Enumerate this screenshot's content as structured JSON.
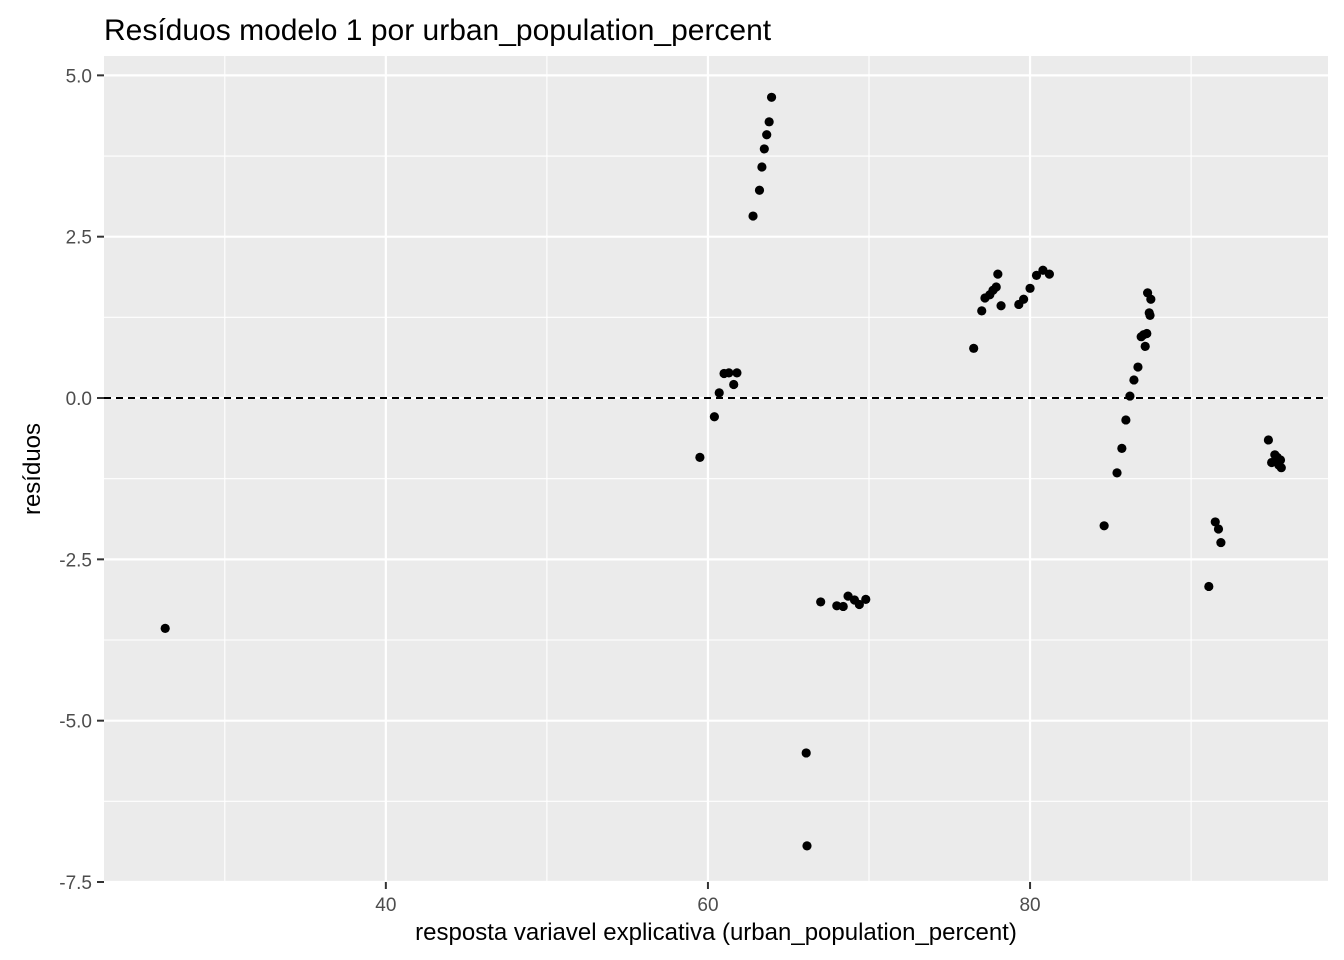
{
  "chart_data": {
    "type": "scatter",
    "title": "Resíduos modelo 1 por urban_population_percent",
    "xlabel": "resposta variavel explicativa (urban_population_percent)",
    "ylabel": "resíduos",
    "xlim": [
      22.5,
      98.5
    ],
    "ylim": [
      -7.5,
      5.3
    ],
    "x_ticks": [
      40,
      60,
      80
    ],
    "x_tick_labels": [
      "40",
      "60",
      "80"
    ],
    "x_minor_ticks": [
      30,
      50,
      70,
      90
    ],
    "y_ticks": [
      -7.5,
      -5.0,
      -2.5,
      0.0,
      2.5,
      5.0
    ],
    "y_tick_labels": [
      "-7.5",
      "-5.0",
      "-2.5",
      "0.0",
      "2.5",
      "5.0"
    ],
    "y_minor_ticks": [
      -6.25,
      -3.75,
      -1.25,
      1.25,
      3.75
    ],
    "grid": true,
    "reference_line": {
      "y": 0,
      "style": "dashed"
    },
    "colors": {
      "panel": "#ebebeb",
      "grid": "#ffffff",
      "point": "#000000",
      "tick_text": "#4d4d4d",
      "tick_mark": "#333333"
    },
    "points": [
      {
        "x": 26.3,
        "y": -3.57
      },
      {
        "x": 59.5,
        "y": -0.92
      },
      {
        "x": 60.4,
        "y": -0.29
      },
      {
        "x": 60.7,
        "y": 0.08
      },
      {
        "x": 61.0,
        "y": 0.38
      },
      {
        "x": 61.3,
        "y": 0.39
      },
      {
        "x": 61.6,
        "y": 0.21
      },
      {
        "x": 61.8,
        "y": 0.39
      },
      {
        "x": 62.8,
        "y": 2.82
      },
      {
        "x": 63.2,
        "y": 3.22
      },
      {
        "x": 63.35,
        "y": 3.58
      },
      {
        "x": 63.5,
        "y": 3.86
      },
      {
        "x": 63.65,
        "y": 4.08
      },
      {
        "x": 63.8,
        "y": 4.28
      },
      {
        "x": 63.95,
        "y": 4.66
      },
      {
        "x": 66.1,
        "y": -5.5
      },
      {
        "x": 66.15,
        "y": -6.94
      },
      {
        "x": 67.0,
        "y": -3.16
      },
      {
        "x": 68.0,
        "y": -3.22
      },
      {
        "x": 68.4,
        "y": -3.23
      },
      {
        "x": 68.7,
        "y": -3.07
      },
      {
        "x": 69.1,
        "y": -3.13
      },
      {
        "x": 69.4,
        "y": -3.2
      },
      {
        "x": 69.8,
        "y": -3.12
      },
      {
        "x": 76.5,
        "y": 0.77
      },
      {
        "x": 77.0,
        "y": 1.35
      },
      {
        "x": 77.2,
        "y": 1.55
      },
      {
        "x": 77.5,
        "y": 1.6
      },
      {
        "x": 77.7,
        "y": 1.67
      },
      {
        "x": 77.9,
        "y": 1.72
      },
      {
        "x": 78.0,
        "y": 1.92
      },
      {
        "x": 78.2,
        "y": 1.43
      },
      {
        "x": 79.3,
        "y": 1.45
      },
      {
        "x": 79.6,
        "y": 1.53
      },
      {
        "x": 80.0,
        "y": 1.7
      },
      {
        "x": 80.4,
        "y": 1.9
      },
      {
        "x": 80.8,
        "y": 1.98
      },
      {
        "x": 81.2,
        "y": 1.92
      },
      {
        "x": 84.6,
        "y": -1.98
      },
      {
        "x": 85.4,
        "y": -1.16
      },
      {
        "x": 85.7,
        "y": -0.78
      },
      {
        "x": 85.95,
        "y": -0.34
      },
      {
        "x": 86.2,
        "y": 0.03
      },
      {
        "x": 86.45,
        "y": 0.28
      },
      {
        "x": 86.7,
        "y": 0.48
      },
      {
        "x": 86.9,
        "y": 0.95
      },
      {
        "x": 87.05,
        "y": 0.98
      },
      {
        "x": 87.15,
        "y": 0.8
      },
      {
        "x": 87.25,
        "y": 1.0
      },
      {
        "x": 87.3,
        "y": 1.63
      },
      {
        "x": 87.4,
        "y": 1.32
      },
      {
        "x": 87.45,
        "y": 1.28
      },
      {
        "x": 87.5,
        "y": 1.53
      },
      {
        "x": 91.1,
        "y": -2.92
      },
      {
        "x": 91.5,
        "y": -1.92
      },
      {
        "x": 91.7,
        "y": -2.03
      },
      {
        "x": 91.85,
        "y": -2.24
      },
      {
        "x": 94.8,
        "y": -0.65
      },
      {
        "x": 95.0,
        "y": -1.0
      },
      {
        "x": 95.2,
        "y": -0.88
      },
      {
        "x": 95.35,
        "y": -0.92
      },
      {
        "x": 95.45,
        "y": -1.04
      },
      {
        "x": 95.6,
        "y": -1.08
      },
      {
        "x": 95.55,
        "y": -0.96
      }
    ]
  }
}
